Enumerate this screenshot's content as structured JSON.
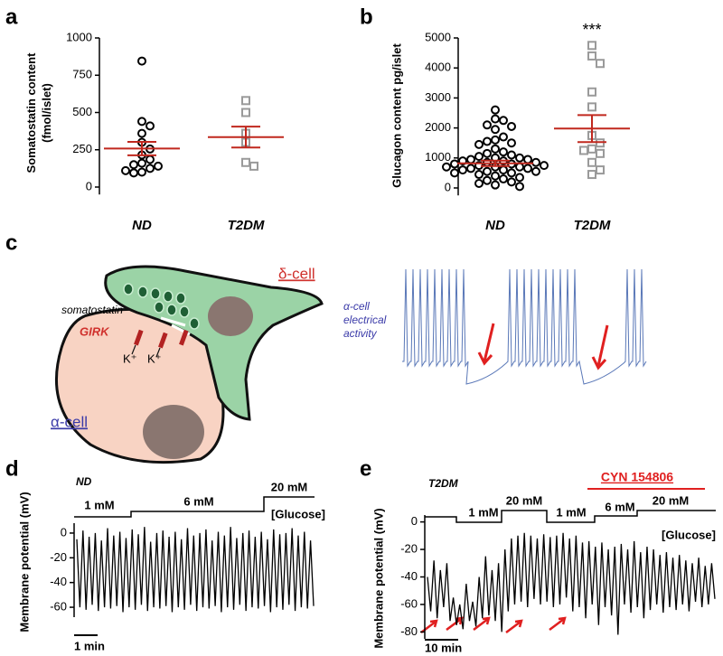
{
  "chart_data": [
    {
      "type": "dotplot",
      "panel": "a",
      "ylabel": [
        "Somatostatin  content",
        "(fmol/islet)"
      ],
      "categories": [
        "ND",
        "T2DM"
      ],
      "ylim": [
        -50,
        1000
      ],
      "yticks": [
        0,
        250,
        500,
        750,
        1000
      ],
      "groups": [
        {
          "color": "#000000",
          "marker": "circle",
          "values": [
            845,
            440,
            410,
            360,
            300,
            255,
            215,
            185,
            160,
            150,
            140,
            125,
            110,
            100,
            95
          ],
          "mean": 258,
          "sem": 45
        },
        {
          "color": "#9a9a9a",
          "marker": "square",
          "values": [
            580,
            500,
            360,
            300,
            165,
            140
          ],
          "mean": 335,
          "sem": 70
        }
      ],
      "mean_color": "#c0281e"
    },
    {
      "type": "dotplot",
      "panel": "b",
      "ylabel": [
        "Glucagon content pg/islet"
      ],
      "categories": [
        "ND",
        "T2DM"
      ],
      "ylim": [
        -250,
        5000
      ],
      "yticks": [
        0,
        1000,
        2000,
        3000,
        4000,
        5000
      ],
      "groups": [
        {
          "color": "#000000",
          "marker": "circle",
          "values": [
            2600,
            2300,
            2250,
            2100,
            2050,
            1950,
            1700,
            1600,
            1550,
            1500,
            1450,
            1300,
            1200,
            1150,
            1100,
            1050,
            1000,
            1000,
            950,
            950,
            900,
            900,
            850,
            850,
            800,
            800,
            750,
            750,
            700,
            700,
            700,
            650,
            650,
            600,
            600,
            550,
            550,
            500,
            500,
            450,
            400,
            350,
            300,
            250,
            200,
            150,
            100,
            50
          ],
          "mean": 820,
          "sem": 90
        },
        {
          "color": "#9a9a9a",
          "marker": "square",
          "values": [
            4750,
            4400,
            4150,
            3200,
            2700,
            1750,
            1500,
            1300,
            1250,
            1150,
            850,
            600,
            450
          ],
          "mean": 1980,
          "sem": 450
        }
      ],
      "mean_color": "#c0281e",
      "annotation": "***"
    },
    {
      "type": "trace",
      "panel": "d",
      "title": "ND",
      "ylabel": [
        "Membrane potential (mV)"
      ],
      "ylim": [
        -68,
        8
      ],
      "yticks": [
        0,
        -20,
        -40,
        -60
      ],
      "color": "#000000",
      "glucose": [
        "1 mM",
        "6 mM",
        "20 mM"
      ],
      "glucose_title": "[Glucose]",
      "scale_bar": "1 min",
      "values": [
        -5,
        -60,
        2,
        -62,
        -3,
        -58,
        0,
        -63,
        -6,
        -60,
        4,
        -61,
        -2,
        -59,
        1,
        -64,
        -4,
        -60,
        3,
        -62,
        -1,
        -58,
        5,
        -63,
        -7,
        -60,
        0,
        -61,
        2,
        -59,
        -3,
        -64,
        1,
        -60,
        -5,
        -62,
        4,
        -58,
        -2,
        -63,
        0,
        -60,
        3,
        -61,
        -6,
        -59,
        1,
        -64,
        -2,
        -60,
        5,
        -62,
        -4,
        -58,
        0,
        -63,
        2,
        -60,
        -3,
        -61,
        1,
        -59,
        -5,
        -64,
        3,
        -60,
        -1,
        -62,
        0,
        -58,
        4,
        -63,
        -2,
        -60,
        1,
        -61,
        -6,
        -59
      ]
    },
    {
      "type": "trace",
      "panel": "e",
      "title": "T2DM",
      "ylabel": [
        "Membrane potential (mV)"
      ],
      "ylim": [
        -85,
        5
      ],
      "yticks": [
        0,
        -20,
        -40,
        -60,
        -80
      ],
      "color": "#000000",
      "glucose": [
        "1 mM",
        "20 mM",
        "1 mM",
        "6 mM",
        "20 mM"
      ],
      "glucose_title": "[Glucose]",
      "scale_bar": "10 min",
      "drug": "CYN 154806",
      "values": [
        -40,
        -65,
        -28,
        -70,
        -35,
        -62,
        -30,
        -72,
        -55,
        -75,
        -60,
        -78,
        -45,
        -72,
        -58,
        -76,
        -40,
        -70,
        -25,
        -68,
        -35,
        -72,
        -30,
        -80,
        -20,
        -65,
        -12,
        -60,
        -10,
        -58,
        -8,
        -62,
        -10,
        -56,
        -12,
        -60,
        -9,
        -58,
        -11,
        -62,
        -10,
        -60,
        -8,
        -55,
        -12,
        -65,
        -10,
        -62,
        -15,
        -70,
        -14,
        -60,
        -18,
        -75,
        -15,
        -62,
        -20,
        -68,
        -18,
        -82,
        -16,
        -60,
        -20,
        -66,
        -14,
        -62,
        -22,
        -70,
        -18,
        -64,
        -20,
        -60,
        -24,
        -66,
        -22,
        -62,
        -26,
        -64,
        -24,
        -60,
        -28,
        -65,
        -30,
        -58,
        -26,
        -62,
        -32,
        -60,
        -30,
        -56
      ]
    }
  ],
  "diagram": {
    "panel": "c",
    "delta_cell": "δ-cell",
    "somatostatin": "somatostatin",
    "girk": "GIRK",
    "k1": "K⁺",
    "k2": "K⁺",
    "alpha_cell": "α-cell",
    "activity": [
      "α-cell",
      "electrical",
      "activity"
    ]
  }
}
